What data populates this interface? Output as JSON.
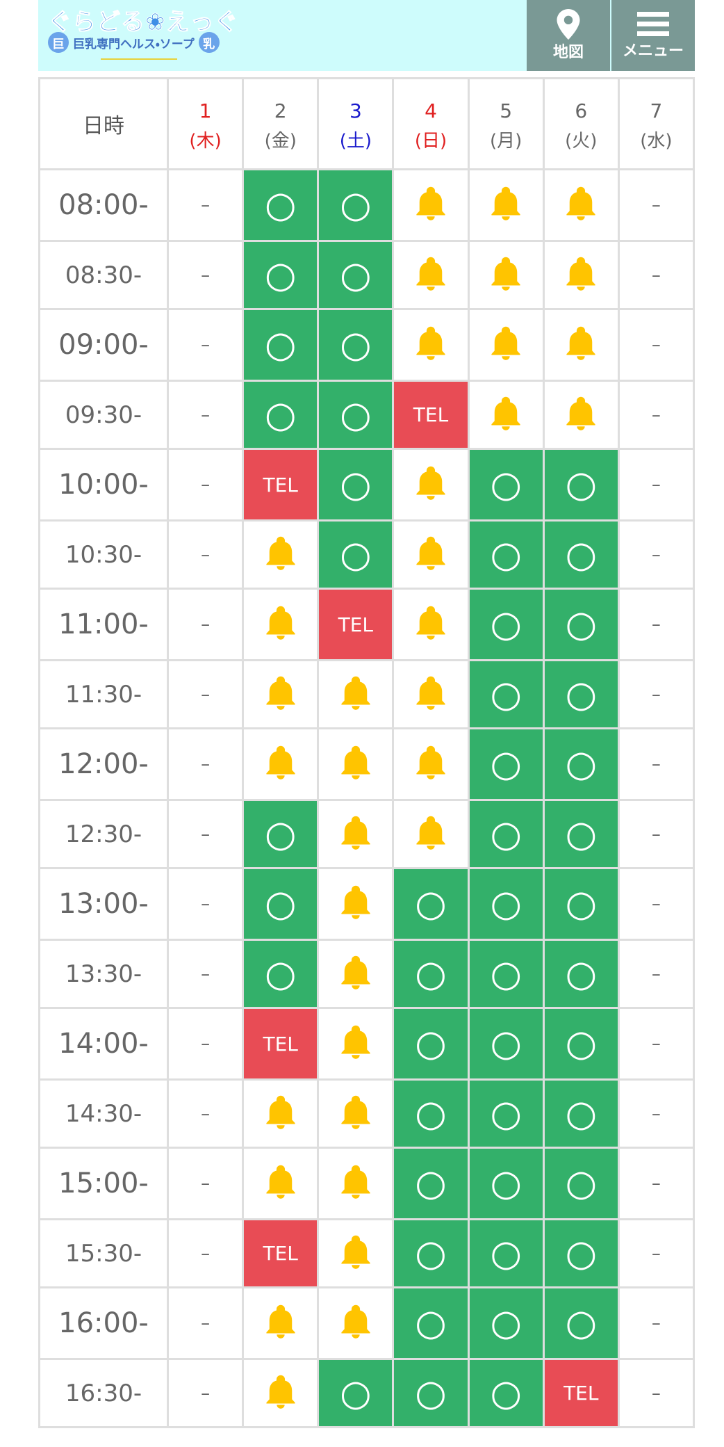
{
  "header": {
    "logo": "ぐらどる❀えっぐ",
    "tagline": "巨乳専門ヘルス・ソープ",
    "badge_left": "巨",
    "badge_right": "乳",
    "buttons": [
      "地図",
      "メニュー"
    ]
  },
  "table": {
    "corner": "日時",
    "columns": [
      {
        "day": "1",
        "weekday": "(木)",
        "color": "#e02020"
      },
      {
        "day": "2",
        "weekday": "(金)",
        "color": "#666666"
      },
      {
        "day": "3",
        "weekday": "(土)",
        "color": "#1a1acc"
      },
      {
        "day": "4",
        "weekday": "(日)",
        "color": "#e02020"
      },
      {
        "day": "5",
        "weekday": "(月)",
        "color": "#666666"
      },
      {
        "day": "6",
        "weekday": "(火)",
        "color": "#666666"
      },
      {
        "day": "7",
        "weekday": "(水)",
        "color": "#666666"
      }
    ],
    "rows": [
      {
        "time": "08:00-",
        "cells": [
          "–",
          "○",
          "○",
          null,
          null,
          null,
          "–"
        ]
      },
      {
        "time": "08:30-",
        "cells": [
          "–",
          "○",
          "○",
          null,
          null,
          null,
          "–"
        ]
      },
      {
        "time": "09:00-",
        "cells": [
          "–",
          "○",
          "○",
          null,
          null,
          null,
          "–"
        ]
      },
      {
        "time": "09:30-",
        "cells": [
          "–",
          "○",
          "○",
          "TEL",
          null,
          null,
          "–"
        ]
      },
      {
        "time": "10:00-",
        "cells": [
          "–",
          "TEL",
          "○",
          null,
          "○",
          "○",
          "–"
        ]
      },
      {
        "time": "10:30-",
        "cells": [
          "–",
          null,
          "○",
          null,
          "○",
          "○",
          "–"
        ]
      },
      {
        "time": "11:00-",
        "cells": [
          "–",
          null,
          "TEL",
          null,
          "○",
          "○",
          "–"
        ]
      },
      {
        "time": "11:30-",
        "cells": [
          "–",
          null,
          null,
          null,
          "○",
          "○",
          "–"
        ]
      },
      {
        "time": "12:00-",
        "cells": [
          "–",
          null,
          null,
          null,
          "○",
          "○",
          "–"
        ]
      },
      {
        "time": "12:30-",
        "cells": [
          "–",
          "○",
          null,
          null,
          "○",
          "○",
          "–"
        ]
      },
      {
        "time": "13:00-",
        "cells": [
          "–",
          "○",
          null,
          "○",
          "○",
          "○",
          "–"
        ]
      },
      {
        "time": "13:30-",
        "cells": [
          "–",
          "○",
          null,
          "○",
          "○",
          "○",
          "–"
        ]
      },
      {
        "time": "14:00-",
        "cells": [
          "–",
          "TEL",
          null,
          "○",
          "○",
          "○",
          "–"
        ]
      },
      {
        "time": "14:30-",
        "cells": [
          "–",
          null,
          null,
          "○",
          "○",
          "○",
          "–"
        ]
      },
      {
        "time": "15:00-",
        "cells": [
          "–",
          null,
          null,
          "○",
          "○",
          "○",
          "–"
        ]
      },
      {
        "time": "15:30-",
        "cells": [
          "–",
          "TEL",
          null,
          "○",
          "○",
          "○",
          "–"
        ]
      },
      {
        "time": "16:00-",
        "cells": [
          "–",
          null,
          null,
          "○",
          "○",
          "○",
          "–"
        ]
      },
      {
        "time": "16:30-",
        "cells": [
          "–",
          null,
          "○",
          "○",
          "○",
          "TEL",
          "–"
        ]
      }
    ]
  }
}
